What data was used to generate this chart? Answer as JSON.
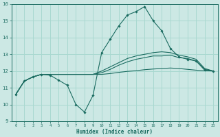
{
  "xlabel": "Humidex (Indice chaleur)",
  "background_color": "#cce8e4",
  "grid_color": "#a8d8d0",
  "line_color": "#1a6b60",
  "xlim": [
    0,
    23
  ],
  "ylim": [
    9,
    16
  ],
  "xticks": [
    0,
    1,
    2,
    3,
    4,
    5,
    6,
    7,
    8,
    9,
    10,
    11,
    12,
    13,
    14,
    15,
    16,
    17,
    18,
    19,
    20,
    21,
    22,
    23
  ],
  "yticks": [
    9,
    10,
    11,
    12,
    13,
    14,
    15,
    16
  ],
  "series": [
    [
      10.6,
      11.4,
      11.65,
      11.8,
      11.75,
      11.45,
      11.15,
      10.0,
      9.55,
      10.55,
      13.1,
      13.9,
      14.7,
      15.35,
      15.55,
      15.85,
      15.0,
      14.4,
      13.35,
      12.85,
      12.7,
      12.6,
      12.05,
      12.0
    ],
    [
      10.6,
      11.4,
      11.65,
      11.8,
      11.8,
      11.8,
      11.8,
      11.8,
      11.8,
      11.8,
      12.0,
      12.25,
      12.5,
      12.75,
      12.9,
      13.0,
      13.1,
      13.15,
      13.1,
      12.95,
      12.85,
      12.7,
      12.15,
      12.0
    ],
    [
      10.6,
      11.4,
      11.65,
      11.8,
      11.8,
      11.8,
      11.8,
      11.8,
      11.8,
      11.8,
      11.9,
      12.1,
      12.35,
      12.55,
      12.7,
      12.8,
      12.9,
      12.9,
      12.95,
      12.8,
      12.75,
      12.6,
      12.1,
      12.0
    ],
    [
      10.6,
      11.4,
      11.65,
      11.8,
      11.8,
      11.8,
      11.8,
      11.8,
      11.8,
      11.8,
      11.8,
      11.85,
      11.92,
      11.98,
      12.02,
      12.08,
      12.12,
      12.15,
      12.18,
      12.15,
      12.1,
      12.05,
      12.02,
      12.0
    ]
  ]
}
